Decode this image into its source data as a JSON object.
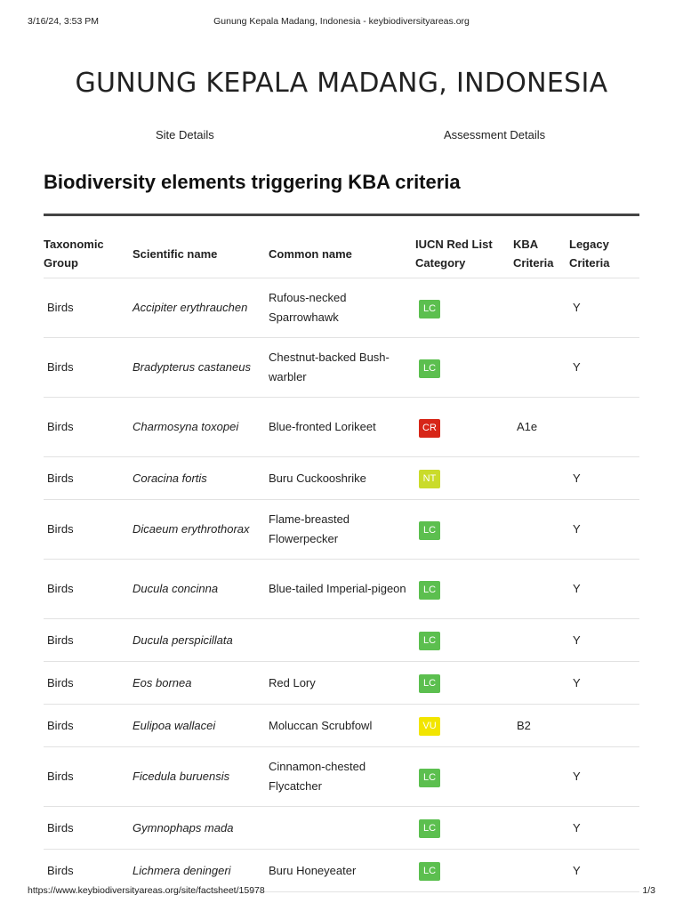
{
  "print_header": {
    "datetime": "3/16/24, 3:53 PM",
    "title": "Gunung Kepala Madang, Indonesia - keybiodiversityareas.org"
  },
  "page": {
    "title": "GUNUNG KEPALA MADANG, INDONESIA"
  },
  "tabs": [
    {
      "label": "Site Details"
    },
    {
      "label": "Assessment Details"
    }
  ],
  "section": {
    "title": "Biodiversity elements triggering KBA criteria"
  },
  "table": {
    "headers": {
      "group_line1": "Taxonomic",
      "group_line2": "Group",
      "scientific": "Scientific name",
      "common": "Common name",
      "iucn_line1": "IUCN Red List",
      "iucn_line2": "Category",
      "kba_line1": "KBA",
      "kba_line2": "Criteria",
      "legacy_line1": "Legacy",
      "legacy_line2": "Criteria"
    },
    "rows": [
      {
        "group": "Birds",
        "scientific": "Accipiter erythrauchen",
        "common": "Rufous-necked Sparrowhawk",
        "iucn": "LC",
        "iucn_color": "#5cbf4f",
        "kba": "",
        "legacy": "Y"
      },
      {
        "group": "Birds",
        "scientific": "Bradypterus castaneus",
        "common": "Chestnut-backed Bush-warbler",
        "iucn": "LC",
        "iucn_color": "#5cbf4f",
        "kba": "",
        "legacy": "Y"
      },
      {
        "group": "Birds",
        "scientific": "Charmosyna toxopei",
        "common": "Blue-fronted Lorikeet",
        "iucn": "CR",
        "iucn_color": "#d72618",
        "kba": "A1e",
        "legacy": ""
      },
      {
        "group": "Birds",
        "scientific": "Coracina fortis",
        "common": "Buru Cuckooshrike",
        "iucn": "NT",
        "iucn_color": "#cadb2b",
        "kba": "",
        "legacy": "Y"
      },
      {
        "group": "Birds",
        "scientific": "Dicaeum erythrothorax",
        "common": "Flame-breasted Flowerpecker",
        "iucn": "LC",
        "iucn_color": "#5cbf4f",
        "kba": "",
        "legacy": "Y"
      },
      {
        "group": "Birds",
        "scientific": "Ducula concinna",
        "common": "Blue-tailed Imperial-pigeon",
        "iucn": "LC",
        "iucn_color": "#5cbf4f",
        "kba": "",
        "legacy": "Y"
      },
      {
        "group": "Birds",
        "scientific": "Ducula perspicillata",
        "common": "",
        "iucn": "LC",
        "iucn_color": "#5cbf4f",
        "kba": "",
        "legacy": "Y"
      },
      {
        "group": "Birds",
        "scientific": "Eos bornea",
        "common": "Red Lory",
        "iucn": "LC",
        "iucn_color": "#5cbf4f",
        "kba": "",
        "legacy": "Y"
      },
      {
        "group": "Birds",
        "scientific": "Eulipoa wallacei",
        "common": "Moluccan Scrubfowl",
        "iucn": "VU",
        "iucn_color": "#f2e500",
        "kba": "B2",
        "legacy": ""
      },
      {
        "group": "Birds",
        "scientific": "Ficedula buruensis",
        "common": "Cinnamon-chested Flycatcher",
        "iucn": "LC",
        "iucn_color": "#5cbf4f",
        "kba": "",
        "legacy": "Y"
      },
      {
        "group": "Birds",
        "scientific": "Gymnophaps mada",
        "common": "",
        "iucn": "LC",
        "iucn_color": "#5cbf4f",
        "kba": "",
        "legacy": "Y"
      },
      {
        "group": "Birds",
        "scientific": "Lichmera deningeri",
        "common": "Buru Honeyeater",
        "iucn": "LC",
        "iucn_color": "#5cbf4f",
        "kba": "",
        "legacy": "Y"
      }
    ]
  },
  "print_footer": {
    "url": "https://www.keybiodiversityareas.org/site/factsheet/15978",
    "page": "1/3"
  }
}
